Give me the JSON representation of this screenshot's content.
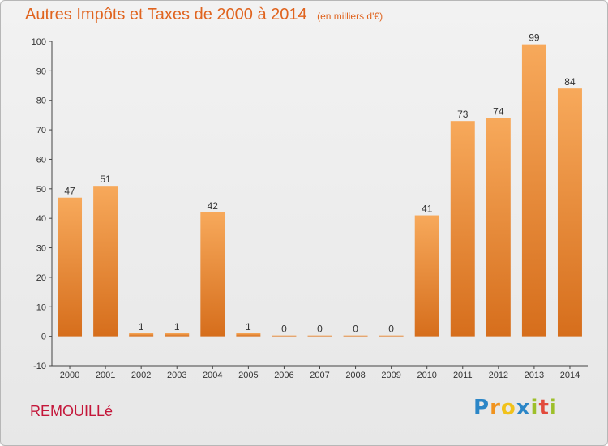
{
  "header": {
    "title": "Autres Impôts et Taxes de 2000 à 2014",
    "unit": "(en milliers d'€)"
  },
  "footer": {
    "commune": "REMOUILLé",
    "logo_text": "Proxiti"
  },
  "colors": {
    "title": "#e0641f",
    "commune": "#c4173a",
    "bar_light": "#f7a95b",
    "bar_dark": "#d66e1c"
  },
  "chart_data": {
    "type": "bar",
    "title": "Autres Impôts et Taxes de 2000 à 2014",
    "xlabel": "",
    "ylabel": "",
    "categories": [
      "2000",
      "2001",
      "2002",
      "2003",
      "2004",
      "2005",
      "2006",
      "2007",
      "2008",
      "2009",
      "2010",
      "2011",
      "2012",
      "2013",
      "2014"
    ],
    "values": [
      47,
      51,
      1,
      1,
      42,
      1,
      0,
      0,
      0,
      0,
      41,
      73,
      74,
      99,
      84
    ],
    "ylim": [
      -10,
      100
    ],
    "yticks": [
      -10,
      0,
      10,
      20,
      30,
      40,
      50,
      60,
      70,
      80,
      90,
      100
    ],
    "grid": false,
    "legend": "none"
  }
}
